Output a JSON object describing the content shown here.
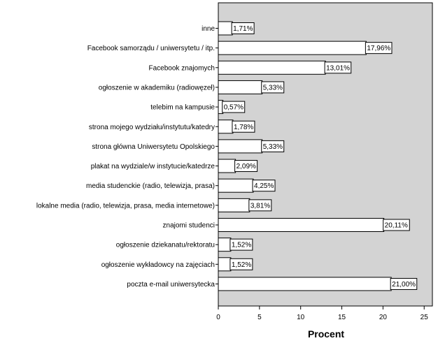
{
  "chart_data": {
    "type": "bar",
    "orientation": "horizontal",
    "categories": [
      "inne",
      "Facebook samorządu / uniwersytetu / itp.",
      "Facebook znajomych",
      "ogłoszenie w akademiku (radiowęzeł)",
      "telebim na kampusie",
      "strona mojego wydziału/instytutu/katedry",
      "strona główna Uniwersytetu Opolskiego",
      "plakat na wydziale/w instytucie/katedrze",
      "media studenckie (radio, telewizja, prasa)",
      "lokalne media (radio, telewizja, prasa, media internetowe)",
      "znajomi studenci",
      "ogłoszenie dziekanatu/rektoratu",
      "ogłoszenie wykładowcy na zajęciach",
      "poczta e-mail uniwersytecka"
    ],
    "values": [
      1.71,
      17.96,
      13.01,
      5.33,
      0.57,
      1.78,
      5.33,
      2.09,
      4.25,
      3.81,
      20.11,
      1.52,
      1.52,
      21.0
    ],
    "data_labels": [
      "1,71%",
      "17,96%",
      "13,01%",
      "5,33%",
      "0,57%",
      "1,78%",
      "5,33%",
      "2,09%",
      "4,25%",
      "3,81%",
      "20,11%",
      "1,52%",
      "1,52%",
      "21,00%"
    ],
    "xlabel": "Procent",
    "ylabel": "",
    "xlim": [
      0,
      26
    ],
    "xticks": [
      0,
      5,
      10,
      15,
      20,
      25
    ],
    "xtick_labels": [
      "0",
      "5",
      "10",
      "15",
      "20",
      "25"
    ],
    "grid": false,
    "colors": {
      "plot_background": "#d3d3d3",
      "bar_fill": "#ffffff",
      "bar_stroke": "#000000"
    }
  }
}
